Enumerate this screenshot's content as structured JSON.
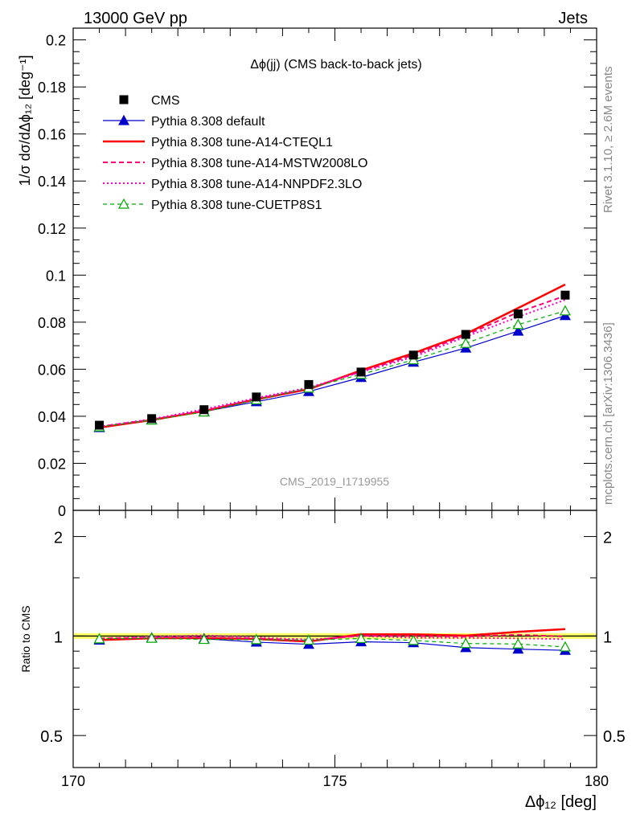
{
  "header": {
    "left": "13000 GeV pp",
    "right": "Jets"
  },
  "side_labels": {
    "rivet": "Rivet 3.1.10, ≥ 2.6M events",
    "mcplots": "mcplots.cern.ch [arXiv:1306.3436]"
  },
  "watermark": "CMS_2019_I1719955",
  "chart_data": {
    "type": "line",
    "title": "Δϕ(jj) (CMS back-to-back jets)",
    "xlabel": "Δϕ₁₂ [deg]",
    "ylabel": "1/σ dσ/dΔϕ₁₂ [deg⁻¹]",
    "ratio_ylabel": "Ratio to CMS",
    "xlim": [
      170,
      180
    ],
    "ylim": [
      0,
      0.205
    ],
    "ratio_ylim": [
      0.4,
      2.4
    ],
    "ratio_scale": "log",
    "legend_position": "top-left",
    "x_ticks": [
      "170",
      "175",
      "180"
    ],
    "y_ticks": [
      "0",
      "0.02",
      "0.04",
      "0.06",
      "0.08",
      "0.1",
      "0.12",
      "0.14",
      "0.16",
      "0.18",
      "0.2"
    ],
    "ratio_ticks": [
      "0.5",
      "1",
      "2"
    ],
    "x": [
      170.5,
      171.5,
      172.5,
      173.5,
      174.5,
      175.5,
      176.5,
      177.5,
      178.5,
      179.4
    ],
    "series": [
      {
        "name": "CMS",
        "color": "#000000",
        "style": "data",
        "values": [
          0.0362,
          0.039,
          0.0428,
          0.0482,
          0.0535,
          0.0588,
          0.066,
          0.0748,
          0.0835,
          0.0915
        ]
      },
      {
        "name": "Pythia 8.308 default",
        "color": "#0000cc",
        "style": "solid-triangle",
        "values": [
          0.0352,
          0.0385,
          0.042,
          0.0462,
          0.0505,
          0.0565,
          0.063,
          0.069,
          0.0762,
          0.0828
        ]
      },
      {
        "name": "Pythia 8.308 tune-A14-CTEQL1",
        "color": "#ff0000",
        "style": "solid-thick",
        "values": [
          0.0352,
          0.0384,
          0.0422,
          0.0472,
          0.0515,
          0.0595,
          0.0668,
          0.075,
          0.086,
          0.096
        ]
      },
      {
        "name": "Pythia 8.308 tune-A14-MSTW2008LO",
        "color": "#ff0077",
        "style": "dashed",
        "values": [
          0.0356,
          0.0386,
          0.0424,
          0.0474,
          0.0518,
          0.059,
          0.066,
          0.0745,
          0.0842,
          0.0912
        ]
      },
      {
        "name": "Pythia 8.308 tune-A14-NNPDF2.3LO",
        "color": "#ff00cc",
        "style": "dotted",
        "values": [
          0.0356,
          0.0388,
          0.043,
          0.0478,
          0.0522,
          0.0588,
          0.0652,
          0.0738,
          0.0822,
          0.0895
        ]
      },
      {
        "name": "Pythia 8.308 tune-CUETP8S1",
        "color": "#00aa00",
        "style": "dashed-open-triangle",
        "values": [
          0.0355,
          0.0384,
          0.0418,
          0.047,
          0.052,
          0.0578,
          0.064,
          0.071,
          0.079,
          0.0848
        ]
      }
    ]
  }
}
